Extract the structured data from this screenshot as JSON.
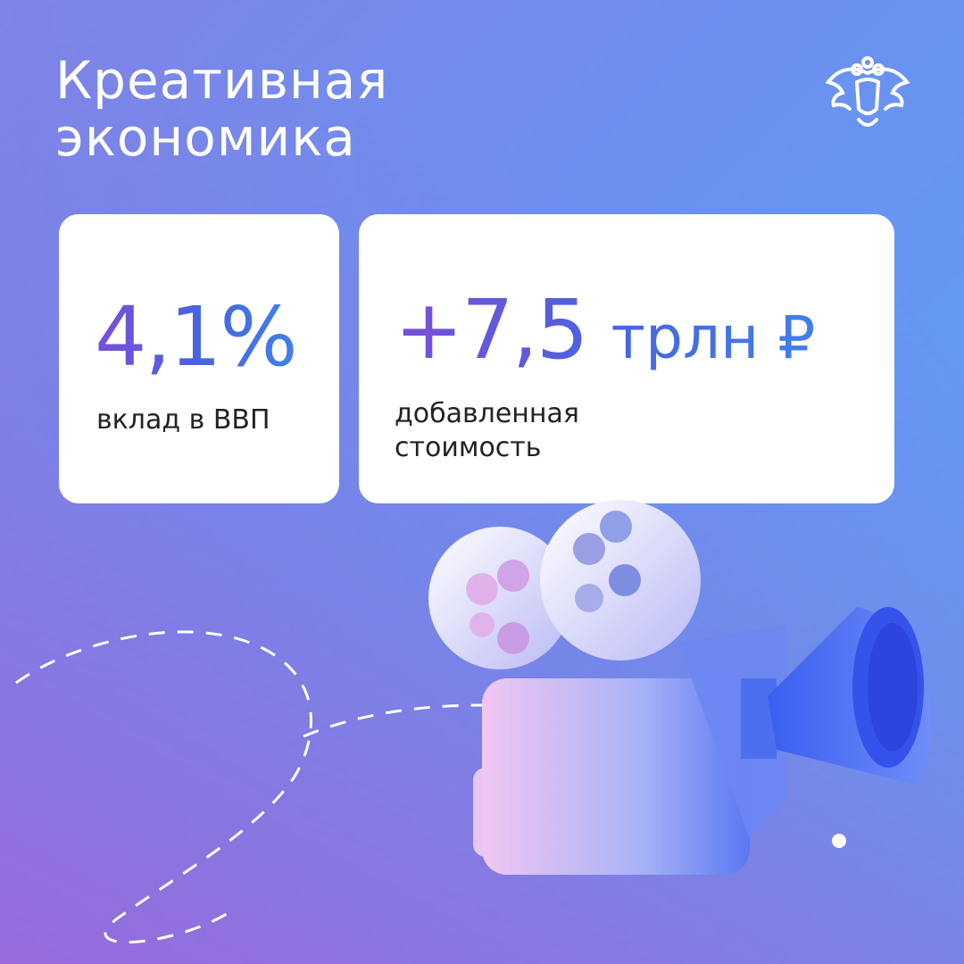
{
  "header": {
    "title_line1": "Креативная",
    "title_line2": "экономика",
    "emblem_icon": "double-headed-eagle-emblem"
  },
  "cards": [
    {
      "value": "4,1%",
      "caption": "вклад в ВВП"
    },
    {
      "value": "+7,5",
      "unit": "трлн ₽",
      "caption_line1": "добавленная",
      "caption_line2": "стоимость"
    }
  ],
  "illustration": {
    "icon": "film-camera-icon"
  },
  "colors": {
    "accent_start": "#7a4fd8",
    "accent_end": "#3f80ea",
    "card_bg": "#ffffff"
  }
}
